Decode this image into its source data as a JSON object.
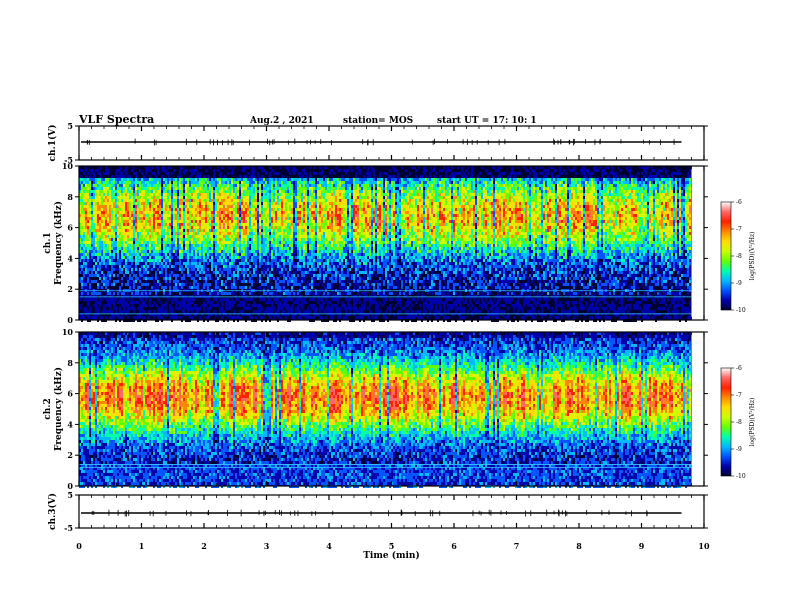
{
  "header": {
    "title": "VLF Spectra",
    "date": "Aug.2 , 2021",
    "station": "station= MOS",
    "start": "start UT = 17: 10: 1"
  },
  "chart_data": {
    "type": "heatmap",
    "x": {
      "label": "Time (min)",
      "range": [
        0,
        10
      ],
      "ticks": [
        "0",
        "1",
        "2",
        "3",
        "4",
        "5",
        "6",
        "7",
        "8",
        "9",
        "10"
      ]
    },
    "panels": [
      {
        "id": "ch1-waveform",
        "kind": "line",
        "ylabel": "ch.1(V)",
        "ylim": [
          -5,
          5
        ],
        "ticks": [
          "5",
          "-5"
        ]
      },
      {
        "id": "ch1-spectrogram",
        "kind": "heatmap",
        "ylabel": "ch.1\nFrequency (kHz)",
        "ylim": [
          0,
          10
        ],
        "ticks": [
          "0",
          "2",
          "4",
          "6",
          "8",
          "10"
        ],
        "colorbar": {
          "label": "log(PSD)(V²/Hz)",
          "range": [
            -10,
            -6
          ],
          "ticks": [
            "-6",
            "-7",
            "-8",
            "-9",
            "-10"
          ]
        }
      },
      {
        "id": "ch2-spectrogram",
        "kind": "heatmap",
        "ylabel": "ch.2\nFrequency (kHz)",
        "ylim": [
          0,
          10
        ],
        "ticks": [
          "0",
          "2",
          "4",
          "6",
          "8",
          "10"
        ],
        "colorbar": {
          "label": "log(PSD)(V²/Hz)",
          "range": [
            -10,
            -6
          ],
          "ticks": [
            "-6",
            "-7",
            "-8",
            "-9",
            "-10"
          ]
        }
      },
      {
        "id": "ch3-waveform",
        "kind": "line",
        "ylabel": "ch.3(V)",
        "ylim": [
          -5,
          5
        ],
        "ticks": [
          "5",
          "-5"
        ]
      }
    ],
    "colormap": [
      "#000033",
      "#0000aa",
      "#0055ff",
      "#00bbff",
      "#00ffaa",
      "#66ff00",
      "#ccff00",
      "#ffdd00",
      "#ff8800",
      "#ff2200",
      "#ff6666",
      "#ffffff"
    ],
    "data_end_min": 9.8
  }
}
